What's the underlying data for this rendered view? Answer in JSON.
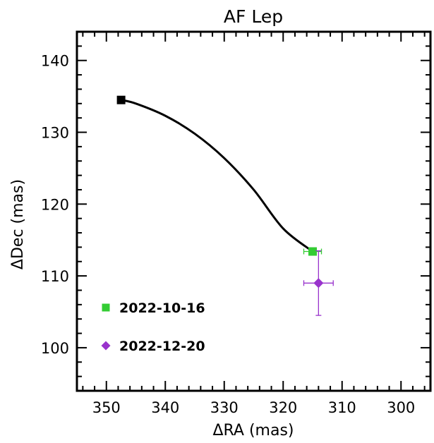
{
  "chart_data": {
    "type": "scatter",
    "title": "AF Lep",
    "xlabel": "ΔRA (mas)",
    "ylabel": "ΔDec (mas)",
    "xlim": [
      355,
      295
    ],
    "ylim": [
      94,
      144
    ],
    "x_ticks": [
      350,
      340,
      330,
      320,
      310,
      300
    ],
    "y_ticks": [
      100,
      110,
      120,
      130,
      140
    ],
    "x_reversed": true,
    "grid": false,
    "legend_position": "lower-left",
    "curve": {
      "points": [
        [
          347.5,
          134.5
        ],
        [
          345.0,
          134.0
        ],
        [
          340.0,
          132.3
        ],
        [
          335.0,
          129.8
        ],
        [
          330.0,
          126.4
        ],
        [
          325.0,
          122.0
        ],
        [
          320.0,
          116.6
        ],
        [
          315.0,
          113.4
        ]
      ],
      "color": "#000000",
      "start_marker": {
        "x": 347.5,
        "y": 134.5,
        "shape": "square",
        "color": "#000000"
      }
    },
    "series": [
      {
        "name": "2022-10-16",
        "marker": "square",
        "color": "#33cc33",
        "points": [
          {
            "x": 315.0,
            "y": 113.4,
            "xerr": 1.5,
            "yerr": 0.4
          }
        ]
      },
      {
        "name": "2022-12-20",
        "marker": "diamond",
        "color": "#9933cc",
        "points": [
          {
            "x": 314.0,
            "y": 109.0,
            "xerr": 2.5,
            "yerr": 4.5
          }
        ]
      }
    ]
  }
}
